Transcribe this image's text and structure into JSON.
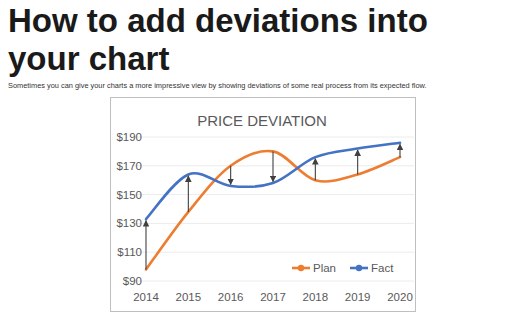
{
  "page": {
    "heading": "How to add deviations into your chart",
    "intro": "Sometimes you can give your charts a more impressive view by showing deviations of some real process from its expected flow."
  },
  "chart_data": {
    "type": "line",
    "title": "PRICE DEVIATION",
    "categories": [
      "2014",
      "2015",
      "2016",
      "2017",
      "2018",
      "2019",
      "2020"
    ],
    "series": [
      {
        "name": "Plan",
        "color": "#ed7d31",
        "values": [
          98,
          138,
          170,
          180,
          160,
          164,
          176
        ]
      },
      {
        "name": "Fact",
        "color": "#4472c4",
        "values": [
          133,
          164,
          156,
          158,
          176,
          182,
          186
        ]
      }
    ],
    "ylim": [
      90,
      190
    ],
    "yticks": [
      {
        "value": 90,
        "label": "$90"
      },
      {
        "value": 110,
        "label": "$110"
      },
      {
        "value": 130,
        "label": "$130"
      },
      {
        "value": 150,
        "label": "$150"
      },
      {
        "value": 170,
        "label": "$170"
      },
      {
        "value": 190,
        "label": "$190"
      }
    ],
    "grid": true,
    "legend": "bottom-right"
  }
}
